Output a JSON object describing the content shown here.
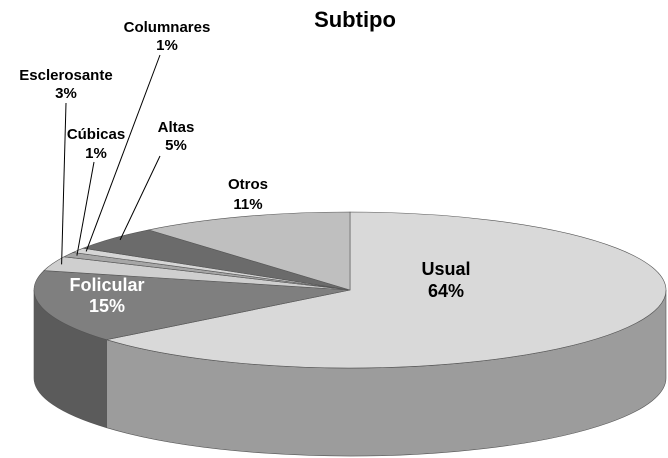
{
  "chart_data": {
    "type": "pie3d",
    "title": "Subtipo",
    "categories": [
      "Usual",
      "Folicular",
      "Esclerosante",
      "Cúbicas",
      "Columnares",
      "Altas",
      "Otros"
    ],
    "values": [
      64,
      15,
      3,
      1,
      1,
      5,
      11
    ],
    "value_labels": [
      "64%",
      "15%",
      "3%",
      "1%",
      "1%",
      "5%",
      "11%"
    ],
    "colors": [
      "#d9d9d9",
      "#7f7f7f",
      "#cfcfcf",
      "#a6a6a6",
      "#d6d6d6",
      "#6b6b6b",
      "#bfbfbf"
    ]
  }
}
